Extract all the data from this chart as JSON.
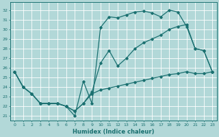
{
  "xlabel": "Humidex (Indice chaleur)",
  "background_color": "#b2d8d8",
  "grid_color": "#ffffff",
  "line_color": "#1a7070",
  "xlim": [
    -0.5,
    23.5
  ],
  "ylim": [
    20.5,
    32.8
  ],
  "yticks": [
    21,
    22,
    23,
    24,
    25,
    26,
    27,
    28,
    29,
    30,
    31,
    32
  ],
  "xticks": [
    0,
    1,
    2,
    3,
    4,
    5,
    6,
    7,
    8,
    9,
    10,
    11,
    12,
    13,
    14,
    15,
    16,
    17,
    18,
    19,
    20,
    21,
    22,
    23
  ],
  "line1_x": [
    0,
    1,
    2,
    3,
    4,
    5,
    6,
    7,
    8,
    9,
    10,
    11,
    12,
    13,
    14,
    15,
    16,
    17,
    18,
    19,
    20,
    21,
    22,
    23
  ],
  "line1_y": [
    25.6,
    24.0,
    23.3,
    22.3,
    22.3,
    22.3,
    22.0,
    21.0,
    24.6,
    22.3,
    30.2,
    31.3,
    31.2,
    31.5,
    31.8,
    31.9,
    31.7,
    31.3,
    32.0,
    31.8,
    30.3,
    28.0,
    27.8,
    25.6
  ],
  "line2_x": [
    0,
    1,
    2,
    3,
    4,
    5,
    6,
    7,
    8,
    9,
    10,
    11,
    12,
    13,
    14,
    15,
    16,
    17,
    18,
    19,
    20,
    21,
    22,
    23
  ],
  "line2_y": [
    25.6,
    24.0,
    23.3,
    22.3,
    22.3,
    22.3,
    22.0,
    21.5,
    22.3,
    23.5,
    26.5,
    27.8,
    26.2,
    27.0,
    28.0,
    28.6,
    29.0,
    29.4,
    30.0,
    30.3,
    30.5,
    28.0,
    27.8,
    25.6
  ],
  "line3_x": [
    0,
    1,
    2,
    3,
    4,
    5,
    6,
    7,
    8,
    9,
    10,
    11,
    12,
    13,
    14,
    15,
    16,
    17,
    18,
    19,
    20,
    21,
    22,
    23
  ],
  "line3_y": [
    25.6,
    24.0,
    23.3,
    22.3,
    22.3,
    22.3,
    22.0,
    21.5,
    22.3,
    23.3,
    23.7,
    23.9,
    24.1,
    24.3,
    24.5,
    24.7,
    24.9,
    25.1,
    25.3,
    25.4,
    25.6,
    25.4,
    25.4,
    25.6
  ]
}
